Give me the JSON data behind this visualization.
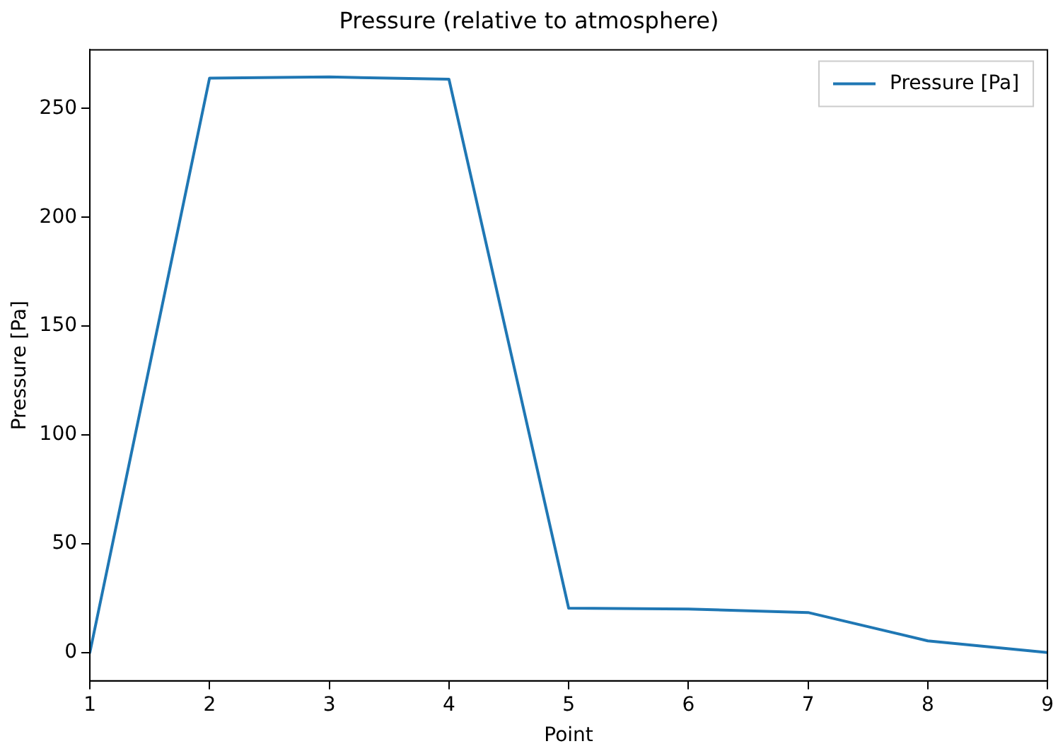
{
  "chart_data": {
    "type": "line",
    "title": "Pressure (relative to atmosphere)",
    "xlabel": "Point",
    "ylabel": "Pressure [Pa]",
    "x": [
      1,
      2,
      3,
      4,
      5,
      6,
      7,
      8,
      9
    ],
    "series": [
      {
        "name": "Pressure [Pa]",
        "color": "#1f77b4",
        "values": [
          0,
          264,
          264.5,
          263.5,
          20.4,
          20,
          18.4,
          5.4,
          0
        ]
      }
    ],
    "xlim": [
      1,
      9
    ],
    "xticks": [
      1,
      2,
      3,
      4,
      5,
      6,
      7,
      8,
      9
    ],
    "ylim": [
      -13,
      277
    ],
    "yticks": [
      0,
      50,
      100,
      150,
      200,
      250
    ],
    "legend": "top right",
    "grid": false,
    "marker": "none",
    "line_style": "solid"
  }
}
